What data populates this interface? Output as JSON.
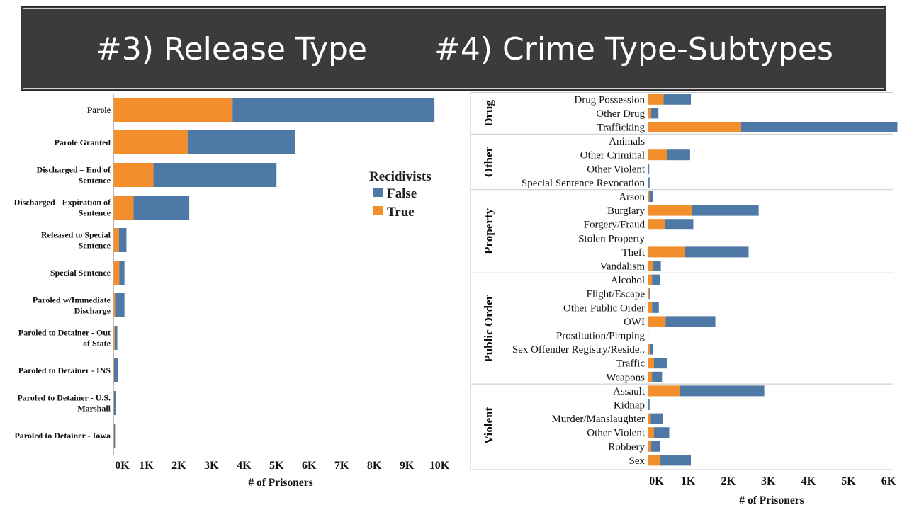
{
  "banner": {
    "title_left": "#3) Release Type",
    "title_right": "#4) Crime Type-Subtypes"
  },
  "colors": {
    "true": "#f28e2b",
    "false": "#4e79a7"
  },
  "chart_data": [
    {
      "type": "bar",
      "orientation": "horizontal",
      "stacked": true,
      "categories": [
        "Parole",
        "Parole Granted",
        "Discharged – End of Sentence",
        "Discharged - Expiration of Sentence",
        "Released to Special Sentence",
        "Special Sentence",
        "Paroled w/Immediate Discharge",
        "Paroled to Detainer - Out of State",
        "Paroled to Detainer - INS",
        "Paroled to Detainer - U.S. Marshall",
        "Paroled to Detainer - Iowa"
      ],
      "category_lines": [
        [
          "Parole"
        ],
        [
          "Parole Granted"
        ],
        [
          "Discharged – End of",
          "Sentence"
        ],
        [
          "Discharged - Expiration of",
          "Sentence"
        ],
        [
          "Released to Special",
          "Sentence"
        ],
        [
          "Special Sentence"
        ],
        [
          "Paroled w/Immediate",
          "Discharge"
        ],
        [
          "Paroled to Detainer - Out",
          "of State"
        ],
        [
          "Paroled to Detainer - INS"
        ],
        [
          "Paroled to Detainer - U.S.",
          "Marshall"
        ],
        [
          "Paroled to Detainer - Iowa"
        ]
      ],
      "series": [
        {
          "name": "True",
          "values": [
            3650,
            2270,
            1220,
            610,
            160,
            170,
            40,
            30,
            10,
            10,
            10
          ]
        },
        {
          "name": "False",
          "values": [
            6200,
            3310,
            3780,
            1710,
            230,
            160,
            290,
            80,
            110,
            60,
            30
          ]
        }
      ],
      "xlabel": "# of Prisoners",
      "xlim": [
        0,
        10000
      ],
      "x_ticks": [
        "0K",
        "1K",
        "2K",
        "3K",
        "4K",
        "5K",
        "6K",
        "7K",
        "8K",
        "9K",
        "10K"
      ],
      "legend": {
        "title": "Recidivists",
        "items": [
          "False",
          "True"
        ],
        "position": "right"
      },
      "grid": false
    },
    {
      "type": "bar",
      "orientation": "horizontal",
      "stacked": true,
      "groups": [
        {
          "name": "Drug",
          "categories": [
            "Drug Possession",
            "Other Drug",
            "Trafficking"
          ],
          "true": [
            390,
            80,
            2320
          ],
          "false": [
            680,
            180,
            3900
          ]
        },
        {
          "name": "Other",
          "categories": [
            "Animals",
            "Other Criminal",
            "Other Violent",
            "Special Sentence Revocation"
          ],
          "true": [
            0,
            470,
            10,
            10
          ],
          "false": [
            0,
            580,
            20,
            30
          ]
        },
        {
          "name": "Property",
          "categories": [
            "Arson",
            "Burglary",
            "Forgery/Fraud",
            "Stolen Property",
            "Theft",
            "Vandalism"
          ],
          "true": [
            30,
            1100,
            420,
            0,
            910,
            120
          ],
          "false": [
            100,
            1660,
            710,
            0,
            1600,
            200
          ]
        },
        {
          "name": "Public Order",
          "categories": [
            "Alcohol",
            "Flight/Escape",
            "Other Public Order",
            "OWI",
            "Prostitution/Pimping",
            "Sex Offender Registry/Reside..",
            "Traffic",
            "Weapons"
          ],
          "true": [
            100,
            30,
            100,
            440,
            0,
            40,
            150,
            100
          ],
          "false": [
            210,
            30,
            170,
            1240,
            10,
            90,
            320,
            250
          ]
        },
        {
          "name": "Violent",
          "categories": [
            "Assault",
            "Kidnap",
            "Murder/Manslaughter",
            "Other Violent",
            "Robbery",
            "Sex"
          ],
          "true": [
            800,
            10,
            70,
            150,
            80,
            310
          ],
          "false": [
            2100,
            30,
            300,
            380,
            230,
            760
          ]
        }
      ],
      "series_names": [
        "True",
        "False"
      ],
      "xlabel": "# of Prisoners",
      "xlim": [
        0,
        6000
      ],
      "x_ticks": [
        "0K",
        "1K",
        "2K",
        "3K",
        "4K",
        "5K",
        "6K"
      ],
      "grid": false
    }
  ]
}
